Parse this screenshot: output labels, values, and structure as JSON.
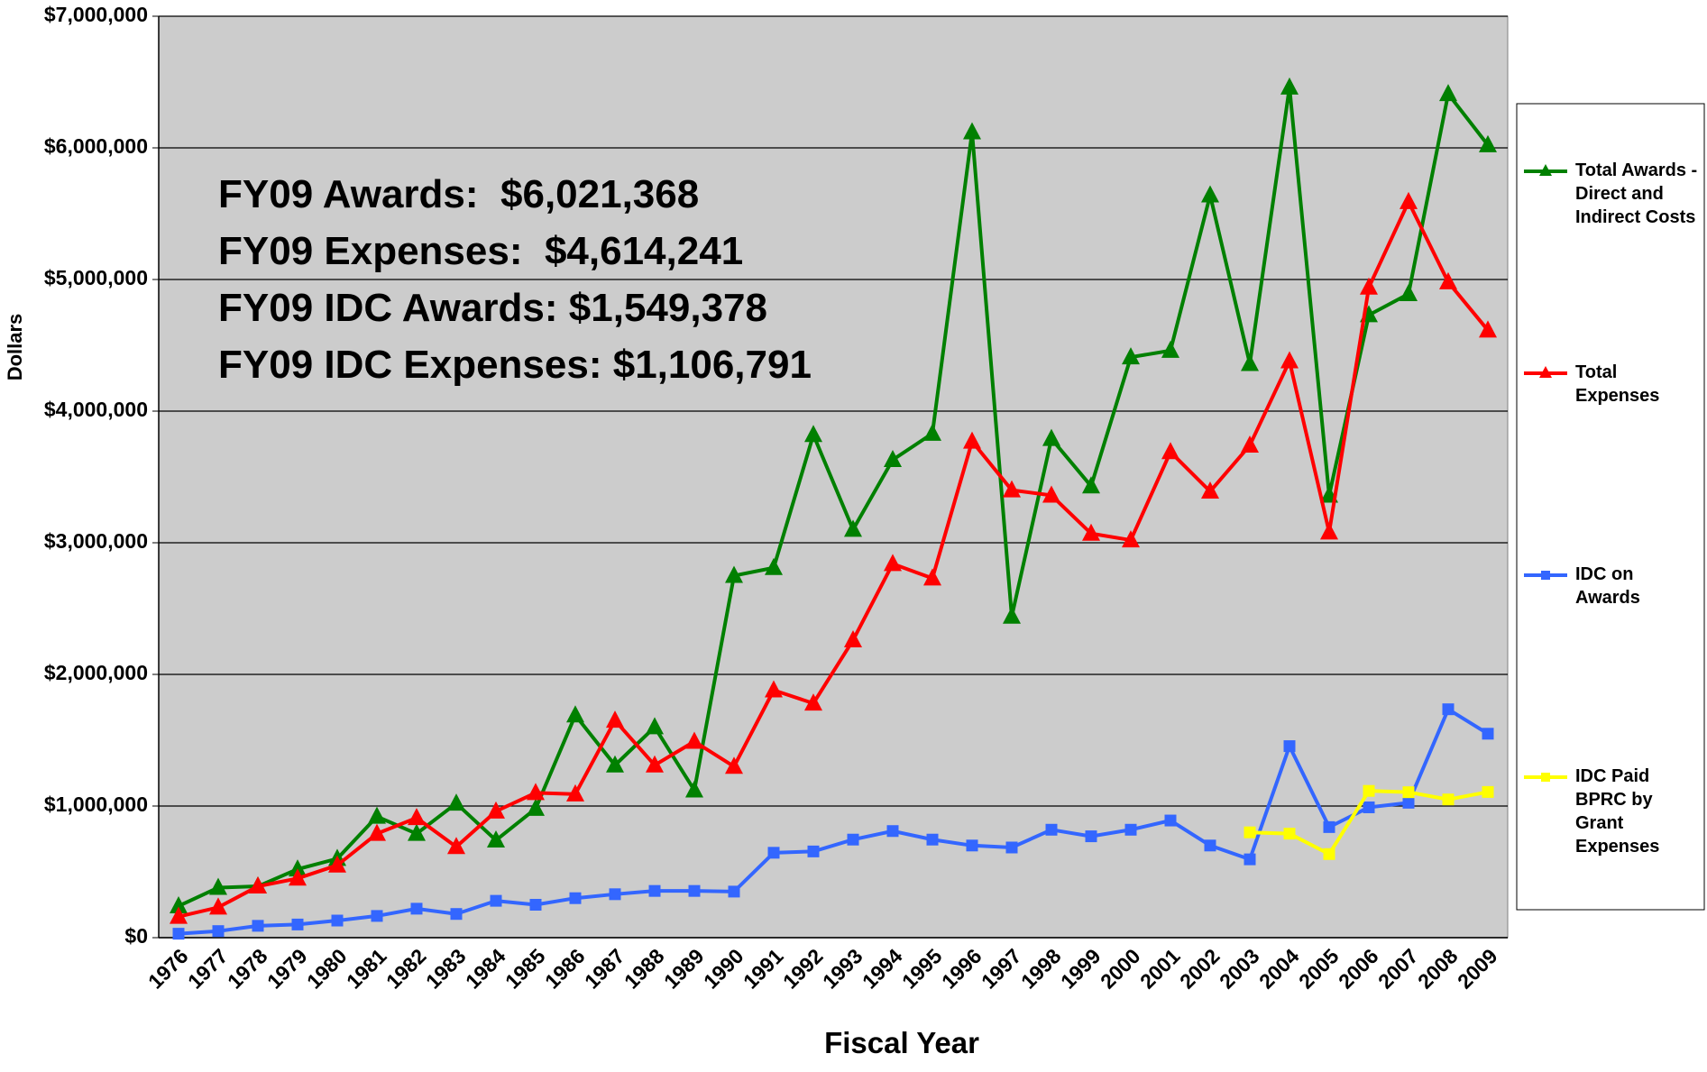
{
  "chart_data": {
    "type": "line",
    "x_label": "Fiscal Year",
    "y_label": "Dollars",
    "annotations": [
      "FY09 Awards:  $6,021,368",
      "FY09 Expenses:  $4,614,241",
      "FY09 IDC Awards: $1,549,378",
      "FY09 IDC Expenses: $1,106,791"
    ],
    "categories": [
      "1976",
      "1977",
      "1978",
      "1979",
      "1980",
      "1981",
      "1982",
      "1983",
      "1984",
      "1985",
      "1986",
      "1987",
      "1988",
      "1989",
      "1990",
      "1991",
      "1992",
      "1993",
      "1994",
      "1995",
      "1996",
      "1997",
      "1998",
      "1999",
      "2000",
      "2001",
      "2002",
      "2003",
      "2004",
      "2005",
      "2006",
      "2007",
      "2008",
      "2009"
    ],
    "series": [
      {
        "name": "Total Awards - Direct and Indirect Costs",
        "color": "#008000",
        "marker": "triangle",
        "values": [
          240000,
          380000,
          390000,
          520000,
          600000,
          920000,
          790000,
          1020000,
          740000,
          980000,
          1690000,
          1310000,
          1600000,
          1120000,
          2750000,
          2810000,
          3820000,
          3100000,
          3630000,
          3830000,
          6120000,
          2440000,
          3790000,
          3430000,
          4410000,
          4460000,
          5640000,
          4360000,
          6460000,
          3360000,
          4730000,
          4890000,
          6410000,
          6021368
        ]
      },
      {
        "name": "Total Expenses",
        "color": "#ff0000",
        "marker": "triangle",
        "values": [
          160000,
          230000,
          390000,
          450000,
          550000,
          790000,
          910000,
          690000,
          960000,
          1100000,
          1090000,
          1650000,
          1310000,
          1490000,
          1300000,
          1880000,
          1780000,
          2260000,
          2840000,
          2730000,
          3770000,
          3400000,
          3360000,
          3070000,
          3020000,
          3690000,
          3390000,
          3740000,
          4380000,
          3080000,
          4940000,
          5590000,
          4980000,
          4614241
        ]
      },
      {
        "name": "IDC on Awards",
        "color": "#3366ff",
        "marker": "square",
        "values": [
          30000,
          50000,
          90000,
          100000,
          130000,
          165000,
          220000,
          180000,
          280000,
          250000,
          300000,
          330000,
          355000,
          355000,
          350000,
          645000,
          655000,
          745000,
          810000,
          745000,
          700000,
          685000,
          820000,
          770000,
          820000,
          890000,
          700000,
          595000,
          1455000,
          840000,
          990000,
          1025000,
          1735000,
          1549378
        ]
      },
      {
        "name": "IDC Paid BPRC by Grant Expenses",
        "color": "#ffff00",
        "marker": "square",
        "values": [
          null,
          null,
          null,
          null,
          null,
          null,
          null,
          null,
          null,
          null,
          null,
          null,
          null,
          null,
          null,
          null,
          null,
          null,
          null,
          null,
          null,
          null,
          null,
          null,
          null,
          null,
          null,
          800000,
          790000,
          635000,
          1115000,
          1105000,
          1050000,
          1106791
        ]
      }
    ],
    "ylim": [
      0,
      7000000
    ],
    "yticks": [
      {
        "value": 0,
        "label": "$0"
      },
      {
        "value": 1000000,
        "label": "$1,000,000"
      },
      {
        "value": 2000000,
        "label": "$2,000,000"
      },
      {
        "value": 3000000,
        "label": "$3,000,000"
      },
      {
        "value": 4000000,
        "label": "$4,000,000"
      },
      {
        "value": 5000000,
        "label": "$5,000,000"
      },
      {
        "value": 6000000,
        "label": "$6,000,000"
      },
      {
        "value": 7000000,
        "label": "$7,000,000"
      }
    ],
    "grid": true,
    "legend": "right",
    "plot_background": "#cccccc"
  }
}
